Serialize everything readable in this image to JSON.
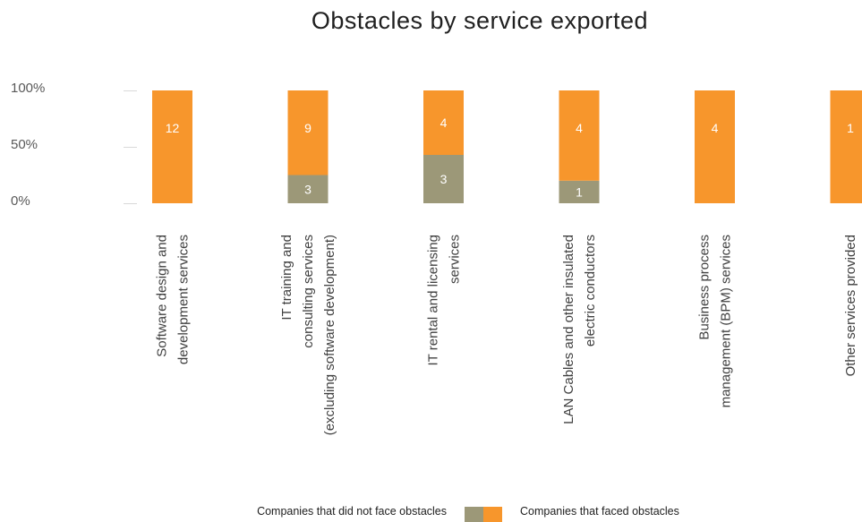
{
  "chart_data": {
    "type": "bar",
    "stacked": true,
    "percent_stacked": true,
    "title": "Obstacles by service exported",
    "categories": [
      [
        "Software design and",
        "development services"
      ],
      [
        "IT training and",
        "consulting services",
        "(excluding software development)"
      ],
      [
        "IT rental and licensing",
        "services"
      ],
      [
        "LAN Cables and other insulated",
        "electric conductors"
      ],
      [
        "Business process",
        "management (BPM) services"
      ],
      [
        "Other services provided"
      ]
    ],
    "series": [
      {
        "name": "Companies that did not face obstacles",
        "color": "#9C9878",
        "values": [
          0,
          3,
          3,
          1,
          0,
          0
        ]
      },
      {
        "name": "Companies that faced obstacles",
        "color": "#F7962C",
        "values": [
          12,
          9,
          4,
          4,
          4,
          1
        ]
      }
    ],
    "y_ticks": [
      "0%",
      "50%",
      "100%"
    ],
    "ylim": [
      0,
      100
    ],
    "grid": false,
    "legend_position": "bottom"
  }
}
